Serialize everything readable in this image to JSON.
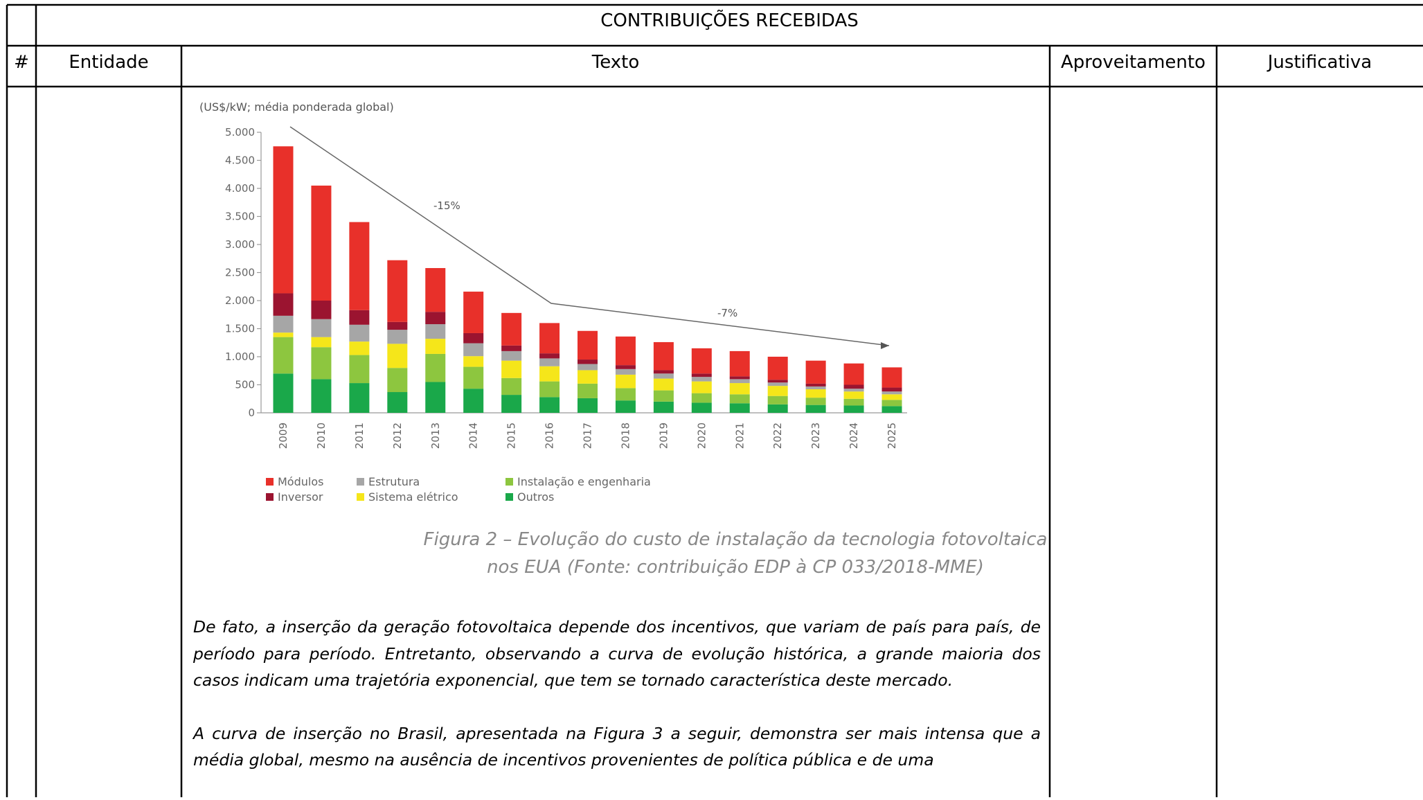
{
  "table": {
    "title": "CONTRIBUIÇÕES RECEBIDAS",
    "columns": [
      "#",
      "Entidade",
      "Texto",
      "Aproveitamento",
      "Justificativa"
    ]
  },
  "figure": {
    "type": "bar",
    "stacked": true,
    "ylabel": "(US$/kW; média ponderada global)",
    "categories": [
      "2009",
      "2010",
      "2011",
      "2012",
      "2013",
      "2014",
      "2015",
      "2016",
      "2017",
      "2018",
      "2019",
      "2020",
      "2021",
      "2022",
      "2023",
      "2024",
      "2025"
    ],
    "series": [
      {
        "name": "Outros",
        "color": "#1aa84a",
        "values": [
          700,
          600,
          530,
          370,
          550,
          430,
          320,
          280,
          260,
          220,
          200,
          180,
          170,
          150,
          140,
          130,
          120
        ]
      },
      {
        "name": "Instalação e engenharia",
        "color": "#8dc63f",
        "values": [
          650,
          570,
          500,
          430,
          500,
          390,
          300,
          280,
          260,
          220,
          200,
          170,
          160,
          150,
          130,
          120,
          110
        ]
      },
      {
        "name": "Sistema elétrico",
        "color": "#f5e61a",
        "values": [
          80,
          180,
          240,
          430,
          270,
          190,
          310,
          270,
          240,
          240,
          210,
          210,
          200,
          180,
          150,
          130,
          100
        ]
      },
      {
        "name": "Estrutura",
        "color": "#a6a6a6",
        "values": [
          300,
          320,
          300,
          250,
          260,
          230,
          170,
          140,
          110,
          100,
          90,
          80,
          70,
          60,
          50,
          50,
          50
        ]
      },
      {
        "name": "Inversor",
        "color": "#9b1430",
        "values": [
          400,
          330,
          260,
          140,
          220,
          180,
          100,
          90,
          80,
          70,
          60,
          60,
          50,
          50,
          50,
          70,
          70
        ]
      },
      {
        "name": "Módulos",
        "color": "#e8302a",
        "values": [
          2620,
          2050,
          1570,
          1100,
          780,
          740,
          580,
          540,
          510,
          510,
          500,
          450,
          450,
          410,
          410,
          380,
          360
        ]
      }
    ],
    "ylim": [
      0,
      5000
    ],
    "yticks": [
      0,
      500,
      {
        "value": 1000,
        "label": "1.000"
      },
      {
        "value": 1500,
        "label": "1.500"
      },
      {
        "value": 2000,
        "label": "2.000"
      },
      {
        "value": 2500,
        "label": "2.500"
      },
      {
        "value": 3000,
        "label": "3.000"
      },
      {
        "value": 3500,
        "label": "3.500"
      },
      {
        "value": 4000,
        "label": "4.000"
      },
      {
        "value": 4500,
        "label": "4.500"
      },
      {
        "value": 5000,
        "label": "5.000"
      }
    ],
    "annotations": [
      "-15%",
      "-7%"
    ],
    "caption": [
      "Figura 2 – Evolução do custo de instalação da tecnologia fotovoltaica",
      "nos EUA (Fonte: contribuição EDP à CP 033/2018-MME)"
    ]
  },
  "paragraphs": [
    "De fato, a inserção da geração fotovoltaica depende dos incentivos, que variam de país para país, de período para período. Entretanto, observando a curva de evolução histórica, a grande maioria dos casos indicam uma trajetória exponencial, que tem se tornado característica deste mercado.",
    "A curva de inserção no Brasil, apresentada na Figura 3 a seguir,  demonstra ser mais intensa que a média global, mesmo na ausência de incentivos provenientes de política pública e de uma"
  ]
}
